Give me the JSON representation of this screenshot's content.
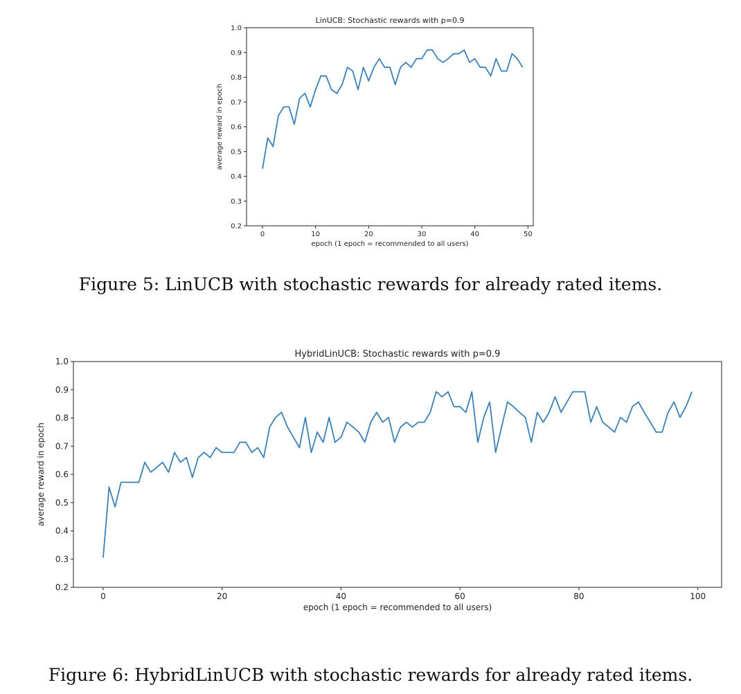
{
  "figures": [
    {
      "caption": "Figure 5: LinUCB with stochastic rewards for already rated items."
    },
    {
      "caption": "Figure 6: HybridLinUCB with stochastic rewards for already rated items."
    }
  ],
  "chart_data": [
    {
      "type": "line",
      "title": "LinUCB: Stochastic rewards with p=0.9",
      "xlabel": "epoch (1 epoch = recommended to all users)",
      "ylabel": "average reward in epoch",
      "xlim": [
        -3,
        51
      ],
      "ylim": [
        0.2,
        1.0
      ],
      "xticks": [
        0,
        10,
        20,
        30,
        40,
        50
      ],
      "yticks": [
        0.2,
        0.3,
        0.4,
        0.5,
        0.6,
        0.7,
        0.8,
        0.9,
        1.0
      ],
      "color": "#3b80b8",
      "grid": false,
      "x": [
        0,
        1,
        2,
        3,
        4,
        5,
        6,
        7,
        8,
        9,
        10,
        11,
        12,
        13,
        14,
        15,
        16,
        17,
        18,
        19,
        20,
        21,
        22,
        23,
        24,
        25,
        26,
        27,
        28,
        29,
        30,
        31,
        32,
        33,
        34,
        35,
        36,
        37,
        38,
        39,
        40,
        41,
        42,
        43,
        44,
        45,
        46,
        47,
        48,
        49
      ],
      "y": [
        0.43,
        0.555,
        0.52,
        0.645,
        0.68,
        0.68,
        0.61,
        0.715,
        0.735,
        0.68,
        0.75,
        0.805,
        0.805,
        0.75,
        0.735,
        0.77,
        0.84,
        0.825,
        0.75,
        0.84,
        0.785,
        0.84,
        0.875,
        0.84,
        0.84,
        0.77,
        0.84,
        0.86,
        0.84,
        0.875,
        0.875,
        0.91,
        0.91,
        0.875,
        0.86,
        0.875,
        0.895,
        0.895,
        0.91,
        0.86,
        0.875,
        0.84,
        0.84,
        0.805,
        0.875,
        0.825,
        0.825,
        0.895,
        0.875,
        0.84
      ]
    },
    {
      "type": "line",
      "title": "HybridLinUCB: Stochastic rewards with p=0.9",
      "xlabel": "epoch (1 epoch = recommended to all users)",
      "ylabel": "average reward in epoch",
      "xlim": [
        -5,
        104
      ],
      "ylim": [
        0.2,
        1.0
      ],
      "xticks": [
        0,
        20,
        40,
        60,
        80,
        100
      ],
      "yticks": [
        0.2,
        0.3,
        0.4,
        0.5,
        0.6,
        0.7,
        0.8,
        0.9,
        1.0
      ],
      "color": "#3b80b8",
      "grid": false,
      "x": [
        0,
        1,
        2,
        3,
        4,
        5,
        6,
        7,
        8,
        9,
        10,
        11,
        12,
        13,
        14,
        15,
        16,
        17,
        18,
        19,
        20,
        21,
        22,
        23,
        24,
        25,
        26,
        27,
        28,
        29,
        30,
        31,
        32,
        33,
        34,
        35,
        36,
        37,
        38,
        39,
        40,
        41,
        42,
        43,
        44,
        45,
        46,
        47,
        48,
        49,
        50,
        51,
        52,
        53,
        54,
        55,
        56,
        57,
        58,
        59,
        60,
        61,
        62,
        63,
        64,
        65,
        66,
        67,
        68,
        69,
        70,
        71,
        72,
        73,
        74,
        75,
        76,
        77,
        78,
        79,
        80,
        81,
        82,
        83,
        84,
        85,
        86,
        87,
        88,
        89,
        90,
        91,
        92,
        93,
        94,
        95,
        96,
        97,
        98,
        99
      ],
      "y": [
        0.305,
        0.555,
        0.485,
        0.572,
        0.572,
        0.572,
        0.572,
        0.643,
        0.608,
        0.625,
        0.643,
        0.608,
        0.678,
        0.643,
        0.66,
        0.59,
        0.66,
        0.678,
        0.66,
        0.695,
        0.678,
        0.678,
        0.678,
        0.714,
        0.714,
        0.678,
        0.695,
        0.66,
        0.768,
        0.802,
        0.82,
        0.768,
        0.732,
        0.695,
        0.802,
        0.678,
        0.75,
        0.714,
        0.802,
        0.714,
        0.732,
        0.785,
        0.768,
        0.75,
        0.714,
        0.785,
        0.82,
        0.785,
        0.802,
        0.714,
        0.768,
        0.785,
        0.768,
        0.785,
        0.785,
        0.82,
        0.893,
        0.875,
        0.893,
        0.84,
        0.84,
        0.82,
        0.893,
        0.714,
        0.802,
        0.857,
        0.678,
        0.768,
        0.857,
        0.84,
        0.82,
        0.802,
        0.714,
        0.82,
        0.785,
        0.82,
        0.875,
        0.82,
        0.857,
        0.893,
        0.893,
        0.893,
        0.785,
        0.84,
        0.785,
        0.768,
        0.75,
        0.802,
        0.785,
        0.84,
        0.857,
        0.82,
        0.785,
        0.75,
        0.75,
        0.82,
        0.857,
        0.802,
        0.84,
        0.893
      ]
    }
  ]
}
